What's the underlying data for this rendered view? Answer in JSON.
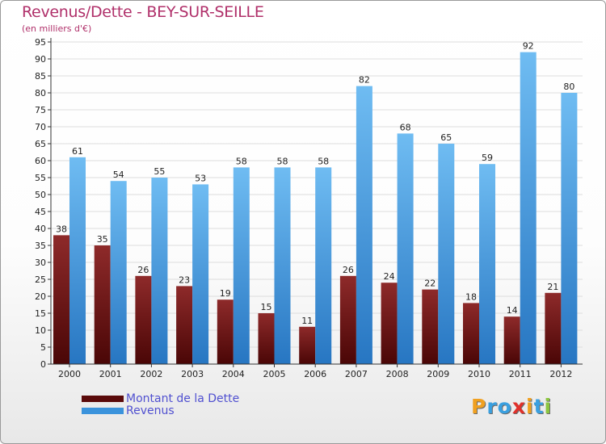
{
  "colors": {
    "title": "#b0306a",
    "dette_top": "#8e2a2a",
    "dette_bottom": "#4a0606",
    "revenus_top": "#6fbcf2",
    "revenus_bottom": "#2776c2",
    "grid": "#dddddd",
    "legend_text": "#5050d0"
  },
  "header": {
    "title": "Revenus/Dette - BEY-SUR-SEILLE",
    "subtitle": "(en milliers d'€)"
  },
  "legend": {
    "items": [
      {
        "label": "Montant de la Dette",
        "color": "#5a0a0a"
      },
      {
        "label": "Revenus",
        "color": "#3b93dc"
      }
    ]
  },
  "logo": {
    "letters": [
      {
        "ch": "P",
        "color": "#f0a020"
      },
      {
        "ch": "r",
        "color": "#3aa0e0"
      },
      {
        "ch": "o",
        "color": "#3aa0e0"
      },
      {
        "ch": "x",
        "color": "#e0302a"
      },
      {
        "ch": "i",
        "color": "#f0a020"
      },
      {
        "ch": "t",
        "color": "#3aa0e0"
      },
      {
        "ch": "i",
        "color": "#8cc63f"
      }
    ]
  },
  "chart_data": {
    "type": "bar",
    "title": "Revenus/Dette - BEY-SUR-SEILLE",
    "subtitle": "(en milliers d'€)",
    "xlabel": "",
    "ylabel": "",
    "ylim": [
      0,
      95
    ],
    "ytick_step": 5,
    "grid": true,
    "legend_position": "bottom-left",
    "categories": [
      "2000",
      "2001",
      "2002",
      "2003",
      "2004",
      "2005",
      "2006",
      "2007",
      "2008",
      "2009",
      "2010",
      "2011",
      "2012"
    ],
    "series": [
      {
        "name": "Montant de la Dette",
        "values": [
          38,
          35,
          26,
          23,
          19,
          15,
          11,
          26,
          24,
          22,
          18,
          14,
          21
        ]
      },
      {
        "name": "Revenus",
        "values": [
          61,
          54,
          55,
          53,
          58,
          58,
          58,
          82,
          68,
          65,
          59,
          92,
          80
        ]
      }
    ]
  }
}
